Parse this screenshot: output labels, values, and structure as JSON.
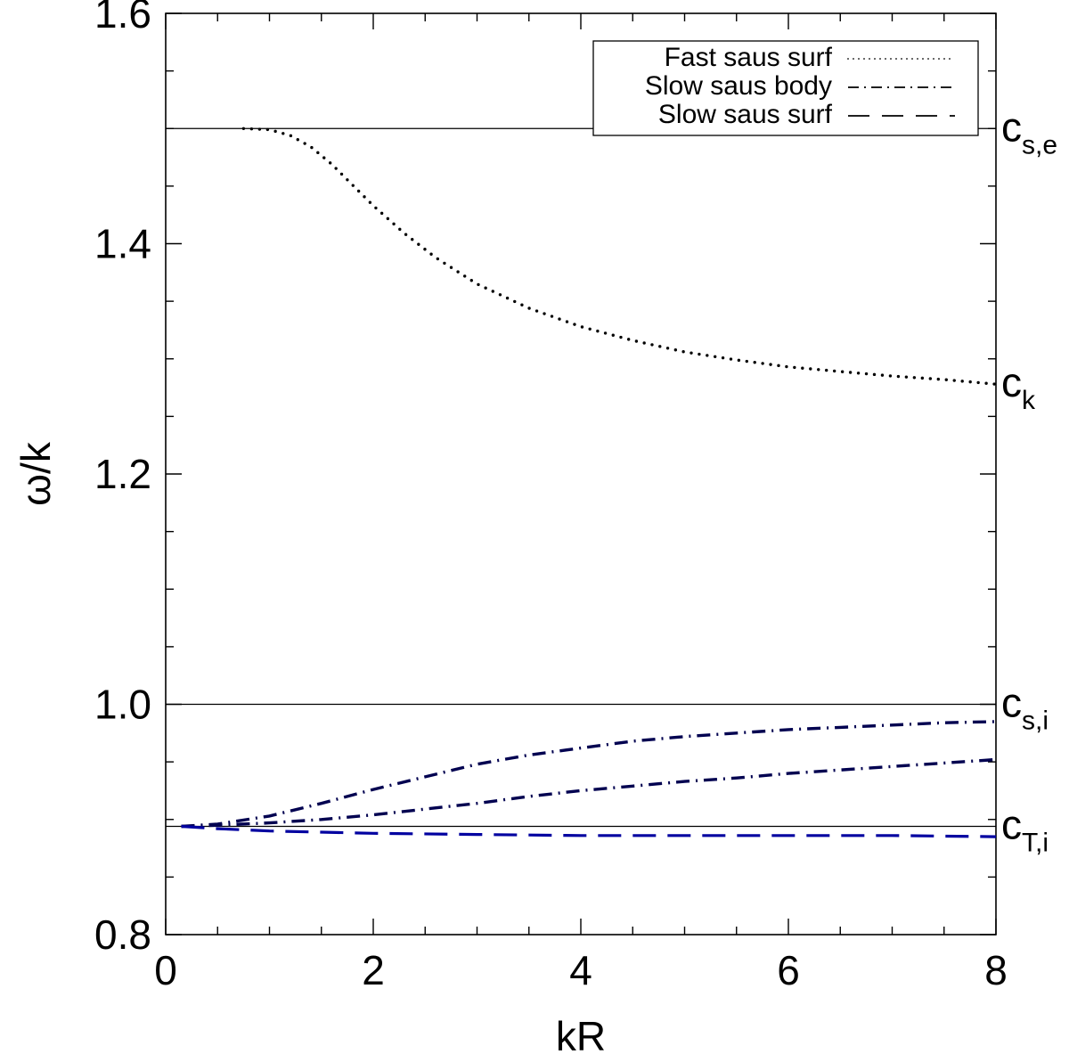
{
  "chart_data": {
    "type": "line",
    "title": "",
    "xlabel": "kR",
    "ylabel": "ω/k",
    "xlim": [
      0,
      8
    ],
    "ylim": [
      0.8,
      1.6
    ],
    "x_ticks": [
      0,
      2,
      4,
      6,
      8
    ],
    "x_tick_labels": [
      "0",
      "2",
      "4",
      "6",
      "8"
    ],
    "y_ticks": [
      0.8,
      1.0,
      1.2,
      1.4,
      1.6
    ],
    "y_tick_labels": [
      "0.8",
      "1.0",
      "1.2",
      "1.4",
      "1.6"
    ],
    "x_minor_step": 0.5,
    "y_minor_step": 0.05,
    "grid": false,
    "legend": {
      "position": "top-right",
      "entries": [
        {
          "label": "Fast saus surf",
          "style": "dotted"
        },
        {
          "label": "Slow saus body",
          "style": "dashdot"
        },
        {
          "label": "Slow saus surf",
          "style": "dashed"
        }
      ]
    },
    "reference_lines": [
      {
        "y": 1.5,
        "main": "c",
        "sub": "s,e"
      },
      {
        "y": 1.0,
        "main": "c",
        "sub": "s,i"
      },
      {
        "y": 0.894,
        "main": "c",
        "sub": "T,i"
      }
    ],
    "side_labels": [
      {
        "y": 1.278,
        "main": "c",
        "sub": "k"
      }
    ],
    "series": [
      {
        "name": "Fast saus surf",
        "style": "dotted",
        "color": "#000000",
        "x": [
          0.75,
          1.0,
          1.2,
          1.4,
          1.6,
          1.8,
          2.0,
          2.3,
          2.6,
          3.0,
          3.5,
          4.0,
          4.5,
          5.0,
          5.5,
          6.0,
          6.5,
          7.0,
          7.5,
          8.0
        ],
        "y": [
          1.5,
          1.499,
          1.494,
          1.484,
          1.469,
          1.451,
          1.433,
          1.409,
          1.388,
          1.365,
          1.344,
          1.328,
          1.316,
          1.306,
          1.299,
          1.293,
          1.289,
          1.285,
          1.282,
          1.278
        ]
      },
      {
        "name": "Slow saus body",
        "style": "dashdot",
        "color": "#000050",
        "x": [
          0.15,
          0.5,
          1.0,
          1.5,
          2.0,
          2.5,
          3.0,
          3.5,
          4.0,
          4.5,
          5.0,
          5.5,
          6.0,
          6.5,
          7.0,
          7.5,
          8.0
        ],
        "y": [
          0.894,
          0.896,
          0.903,
          0.914,
          0.926,
          0.937,
          0.948,
          0.956,
          0.962,
          0.968,
          0.972,
          0.975,
          0.978,
          0.98,
          0.982,
          0.984,
          0.985
        ]
      },
      {
        "name": "Slow saus body",
        "style": "dashdot",
        "color": "#000050",
        "x": [
          0.15,
          0.5,
          1.0,
          1.5,
          2.0,
          2.5,
          3.0,
          3.5,
          4.0,
          4.5,
          5.0,
          5.5,
          6.0,
          6.5,
          7.0,
          7.5,
          8.0
        ],
        "y": [
          0.894,
          0.895,
          0.897,
          0.9,
          0.904,
          0.909,
          0.914,
          0.92,
          0.925,
          0.929,
          0.933,
          0.936,
          0.94,
          0.943,
          0.946,
          0.949,
          0.952
        ]
      },
      {
        "name": "Slow saus surf",
        "style": "dashed",
        "color": "#0000a0",
        "x": [
          0.15,
          0.5,
          1.0,
          1.5,
          2.0,
          3.0,
          4.0,
          5.0,
          6.0,
          7.0,
          8.0
        ],
        "y": [
          0.894,
          0.892,
          0.89,
          0.889,
          0.888,
          0.887,
          0.886,
          0.886,
          0.886,
          0.886,
          0.885
        ]
      }
    ]
  }
}
